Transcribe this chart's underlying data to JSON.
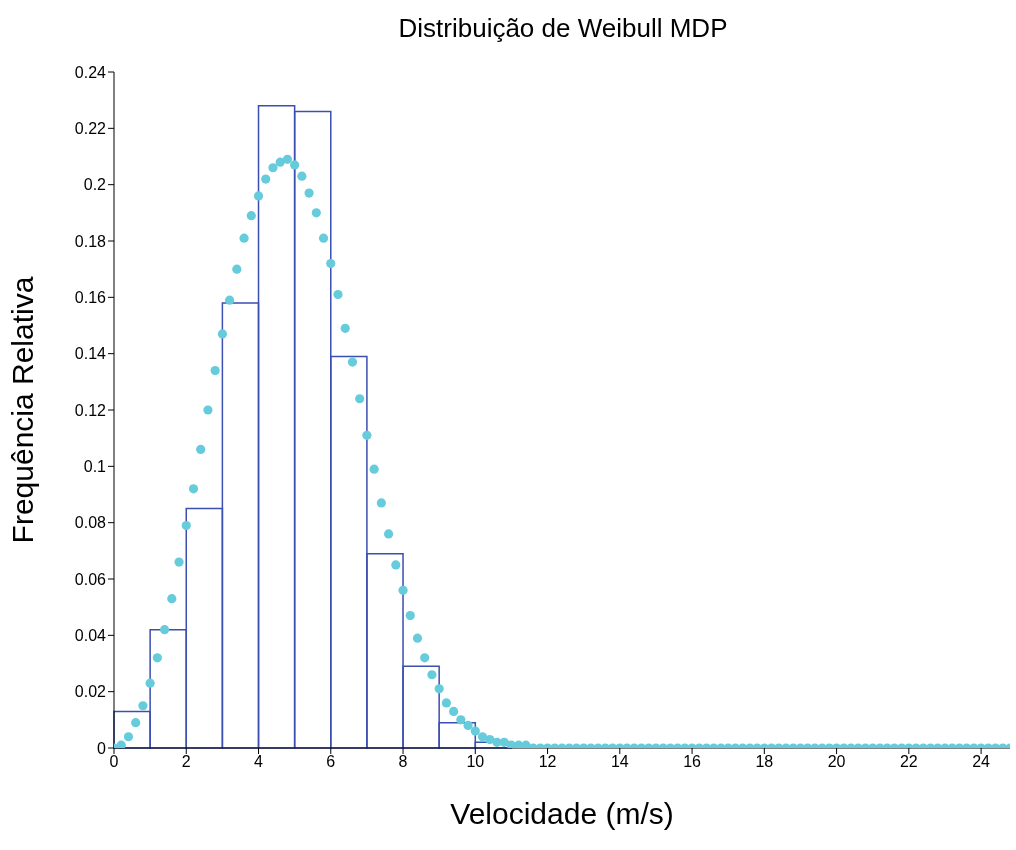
{
  "chart_data": {
    "type": "histogram",
    "title": "Distribuição de Weibull MDP",
    "xlabel": "Velocidade (m/s)",
    "ylabel": "Frequência Relativa",
    "bins": [
      0,
      1,
      2,
      3,
      4,
      5,
      6,
      7,
      8,
      9,
      10,
      11
    ],
    "values": [
      0.013,
      0.042,
      0.085,
      0.158,
      0.228,
      0.226,
      0.139,
      0.069,
      0.029,
      0.009,
      0.002
    ],
    "color": "#3b4fb0",
    "series": [
      {
        "type": "scatter",
        "color": "#66cbdb",
        "marker": "circle",
        "x": [
          0,
          0.2,
          0.4,
          0.6,
          0.8,
          1,
          1.2,
          1.4,
          1.6,
          1.8,
          2,
          2.2,
          2.4,
          2.6,
          2.8,
          3,
          3.2,
          3.4,
          3.6,
          3.8,
          4,
          4.2,
          4.4,
          4.6,
          4.8,
          5,
          5.2,
          5.4,
          5.6,
          5.8,
          6,
          6.2,
          6.4,
          6.6,
          6.8,
          7,
          7.2,
          7.4,
          7.6,
          7.8,
          8,
          8.2,
          8.4,
          8.6,
          8.8,
          9,
          9.2,
          9.4,
          9.6,
          9.8,
          10,
          10.2,
          10.4,
          10.6,
          10.8,
          11,
          11.2,
          11.4,
          11.6,
          11.8,
          12,
          12.2,
          12.4,
          12.6,
          12.8,
          13,
          13.2,
          13.4,
          13.6,
          13.8,
          14,
          14.2,
          14.4,
          14.6,
          14.8,
          15,
          15.2,
          15.4,
          15.6,
          15.8,
          16,
          16.2,
          16.4,
          16.6,
          16.8,
          17,
          17.2,
          17.4,
          17.6,
          17.8,
          18,
          18.2,
          18.4,
          18.6,
          18.8,
          19,
          19.2,
          19.4,
          19.6,
          19.8,
          20,
          20.2,
          20.4,
          20.6,
          20.8,
          21,
          21.2,
          21.4,
          21.6,
          21.8,
          22,
          22.2,
          22.4,
          22.6,
          22.8,
          23,
          23.2,
          23.4,
          23.6,
          23.8,
          24,
          24.2,
          24.4,
          24.6,
          24.8
        ],
        "values": [
          0,
          0.001,
          0.004,
          0.009,
          0.015,
          0.023,
          0.032,
          0.042,
          0.053,
          0.066,
          0.079,
          0.092,
          0.106,
          0.12,
          0.134,
          0.147,
          0.159,
          0.17,
          0.181,
          0.189,
          0.196,
          0.202,
          0.206,
          0.208,
          0.209,
          0.207,
          0.203,
          0.197,
          0.19,
          0.181,
          0.172,
          0.161,
          0.149,
          0.137,
          0.124,
          0.111,
          0.099,
          0.087,
          0.076,
          0.065,
          0.056,
          0.047,
          0.039,
          0.032,
          0.026,
          0.021,
          0.016,
          0.013,
          0.01,
          0.008,
          0.006,
          0.004,
          0.003,
          0.002,
          0.002,
          0.001,
          0.001,
          0.001,
          0,
          0,
          0,
          0,
          0,
          0,
          0,
          0,
          0,
          0,
          0,
          0,
          0,
          0,
          0,
          0,
          0,
          0,
          0,
          0,
          0,
          0,
          0,
          0,
          0,
          0,
          0,
          0,
          0,
          0,
          0,
          0,
          0,
          0,
          0,
          0,
          0,
          0,
          0,
          0,
          0,
          0,
          0,
          0,
          0,
          0,
          0,
          0,
          0,
          0,
          0,
          0,
          0,
          0,
          0,
          0,
          0,
          0,
          0,
          0,
          0,
          0,
          0,
          0,
          0,
          0,
          0
        ]
      }
    ],
    "xlim": [
      0,
      24.8
    ],
    "xticks": [
      0,
      2,
      4,
      6,
      8,
      10,
      12,
      14,
      16,
      18,
      20,
      22,
      24
    ],
    "ylim": [
      0,
      0.24
    ],
    "yticks": [
      0,
      0.02,
      0.04,
      0.06,
      0.08,
      0.1,
      0.12,
      0.14,
      0.16,
      0.18,
      0.2,
      0.22,
      0.24
    ]
  }
}
